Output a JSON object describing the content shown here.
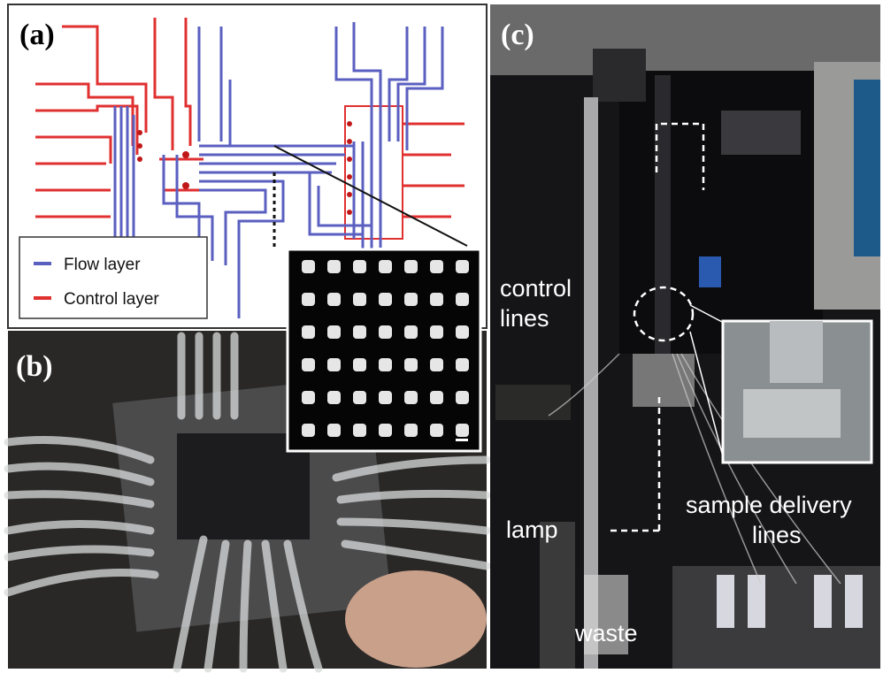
{
  "panels": [
    {
      "label": "(a)",
      "legend": [
        "Flow layer",
        "Control layer"
      ]
    },
    {
      "label": "(b)"
    },
    {
      "label": "(c)",
      "annotations": [
        {
          "lines": [
            "control",
            "lines"
          ]
        },
        {
          "lines": [
            "lamp"
          ]
        },
        {
          "lines": [
            "sample delivery",
            "lines"
          ]
        },
        {
          "lines": [
            "waste"
          ]
        }
      ]
    }
  ]
}
